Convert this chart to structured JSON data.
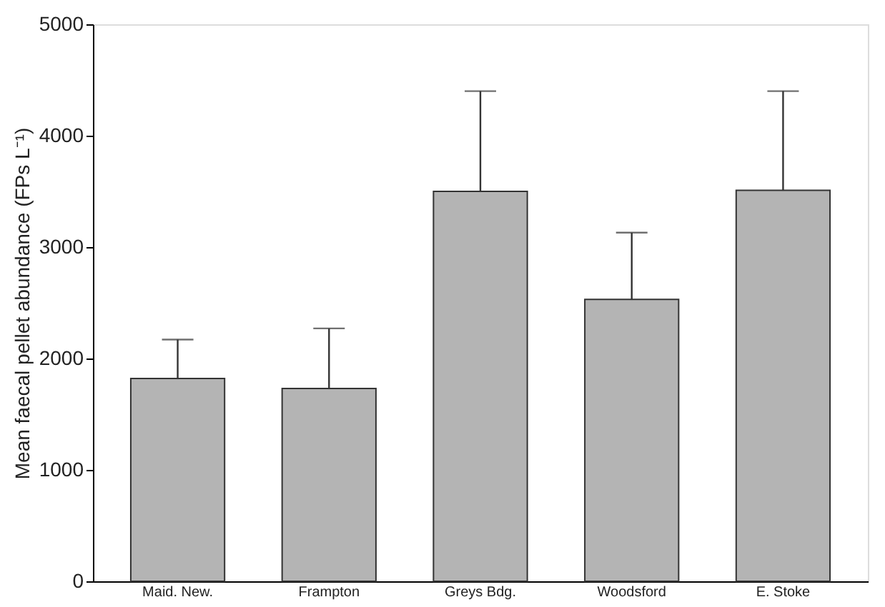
{
  "chart_data": {
    "type": "bar",
    "ylabel": "Mean faecal pellet abundance (FPs L⁻¹)",
    "categories": [
      "Maid. New.",
      "Frampton",
      "Greys Bdg.",
      "Woodsford",
      "E. Stoke"
    ],
    "values": [
      1820,
      1730,
      3500,
      2530,
      3510
    ],
    "errors": [
      [
        1820,
        2170
      ],
      [
        1730,
        2270
      ],
      [
        3500,
        4400
      ],
      [
        2530,
        3130
      ],
      [
        3510,
        4400
      ]
    ],
    "color": "#b4b4b4",
    "ylim": [
      0,
      5000
    ],
    "yticks": [
      0,
      1000,
      2000,
      3000,
      4000,
      5000
    ],
    "grid": false
  }
}
